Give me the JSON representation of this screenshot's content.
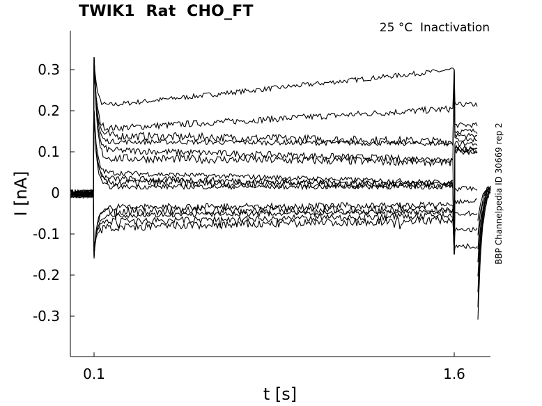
{
  "chart_data": {
    "type": "line",
    "title": "TWIK1  Rat  CHO_FT",
    "subtitle": "25 °C  Inactivation",
    "side_label": "BBP Channelpedia ID 30669 rep 2",
    "xlabel": "t [s]",
    "ylabel": "I [nA]",
    "xlim": [
      0.0,
      1.77
    ],
    "ylim": [
      -0.4,
      0.4
    ],
    "x_ticks": [
      "0.1",
      "1.6"
    ],
    "x_tick_values": [
      0.1,
      1.6
    ],
    "y_ticks": [
      "0.3",
      "0.2",
      "0.1",
      "0",
      "-0.1",
      "-0.2",
      "-0.3"
    ],
    "y_tick_values": [
      0.3,
      0.2,
      0.1,
      0,
      -0.1,
      -0.2,
      -0.3
    ],
    "grid": false,
    "line_color": "#000000",
    "pulse_start": 0.1,
    "pulse_end": 1.6,
    "tail_end": 1.7,
    "series": [
      {
        "pulse_start": 0.21,
        "pulse_end": 0.3,
        "tail": 0.215
      },
      {
        "pulse_start": 0.155,
        "pulse_end": 0.205,
        "tail": 0.165
      },
      {
        "pulse_start": 0.14,
        "pulse_end": 0.125,
        "tail": 0.15
      },
      {
        "pulse_start": 0.125,
        "pulse_end": 0.12,
        "tail": 0.14
      },
      {
        "pulse_start": 0.105,
        "pulse_end": 0.08,
        "tail": 0.13
      },
      {
        "pulse_start": 0.085,
        "pulse_end": 0.075,
        "tail": 0.12
      },
      {
        "pulse_start": 0.05,
        "pulse_end": 0.025,
        "tail": 0.11
      },
      {
        "pulse_start": 0.035,
        "pulse_end": 0.02,
        "tail": 0.105
      },
      {
        "pulse_start": 0.025,
        "pulse_end": 0.02,
        "tail": 0.1
      },
      {
        "pulse_start": 0.015,
        "pulse_end": 0.015,
        "tail": 0.1
      },
      {
        "pulse_start": -0.035,
        "pulse_end": -0.03,
        "tail": 0.01
      },
      {
        "pulse_start": -0.045,
        "pulse_end": -0.04,
        "tail": -0.02
      },
      {
        "pulse_start": -0.055,
        "pulse_end": -0.045,
        "tail": -0.05
      },
      {
        "pulse_start": -0.07,
        "pulse_end": -0.055,
        "tail": -0.09
      },
      {
        "pulse_start": -0.085,
        "pulse_end": -0.065,
        "tail": -0.13
      }
    ]
  }
}
